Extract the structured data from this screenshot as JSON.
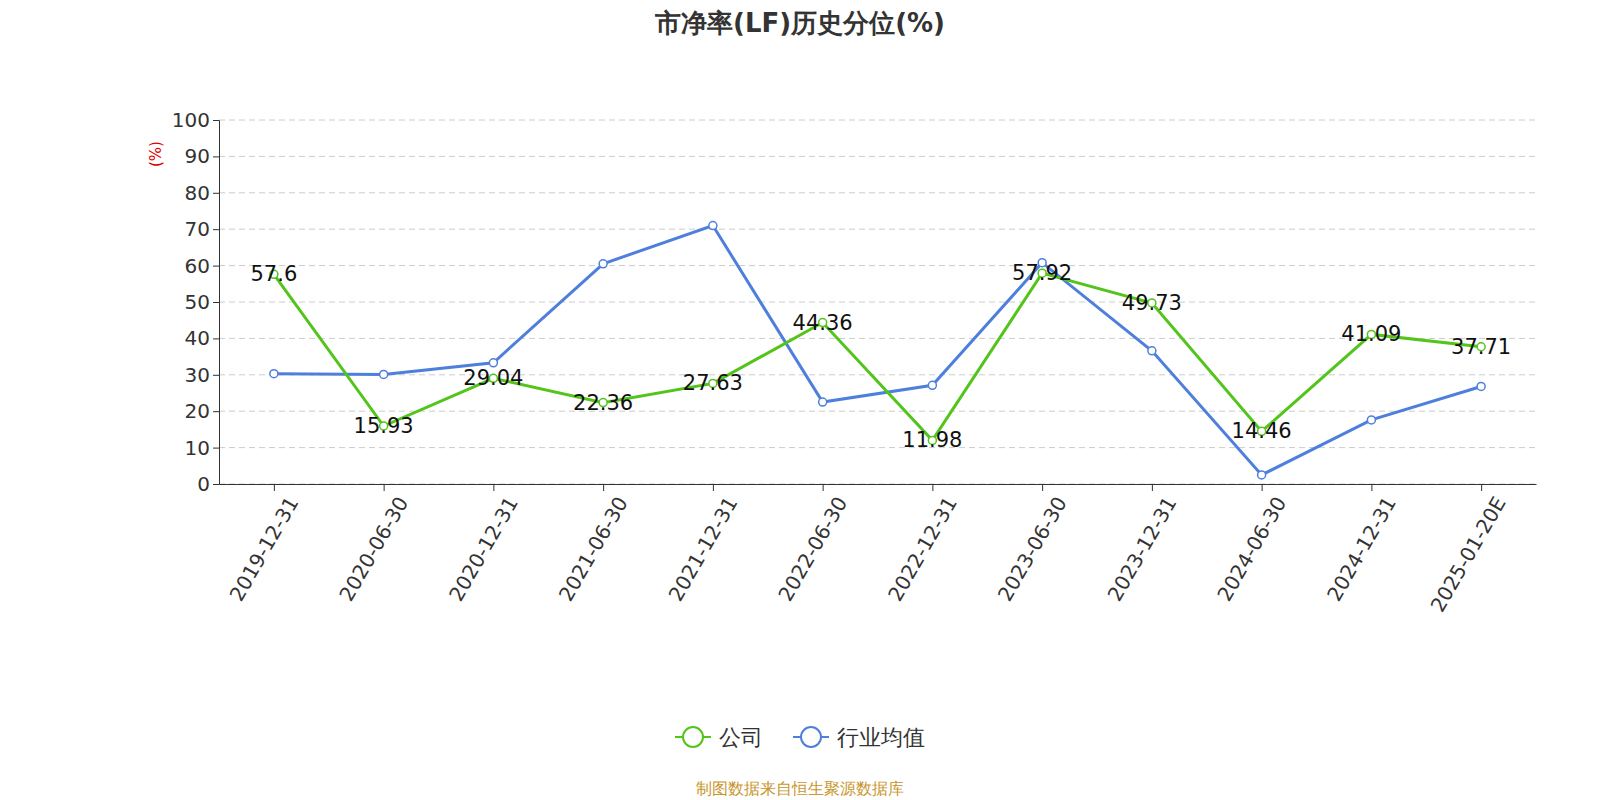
{
  "chart_data": {
    "type": "line",
    "title": "市净率(LF)历史分位(%)",
    "y_label": "(%)",
    "source": "制图数据来自恒生聚源数据库",
    "categories": [
      "2019-12-31",
      "2020-06-30",
      "2020-12-31",
      "2021-06-30",
      "2021-12-31",
      "2022-06-30",
      "2022-12-31",
      "2023-06-30",
      "2023-12-31",
      "2024-06-30",
      "2024-12-31",
      "2025-01-20E"
    ],
    "series": [
      {
        "name": "公司",
        "color": "#52c41a",
        "marker": "circle",
        "data_labels": true,
        "values": [
          57.6,
          15.93,
          29.04,
          22.36,
          27.63,
          44.36,
          11.98,
          57.92,
          49.73,
          14.46,
          41.09,
          37.71
        ]
      },
      {
        "name": "行业均值",
        "color": "#4e7fdc",
        "marker": "circle",
        "values": [
          30.3,
          30.1,
          33.3,
          60.5,
          71.0,
          22.5,
          27.1,
          60.8,
          36.6,
          2.5,
          17.6,
          26.8
        ]
      }
    ],
    "ylim": [
      0,
      100
    ],
    "yticks": [
      0,
      10,
      20,
      30,
      40,
      50,
      60,
      70,
      80,
      90,
      100
    ],
    "grid": true,
    "legend": "bottom"
  }
}
